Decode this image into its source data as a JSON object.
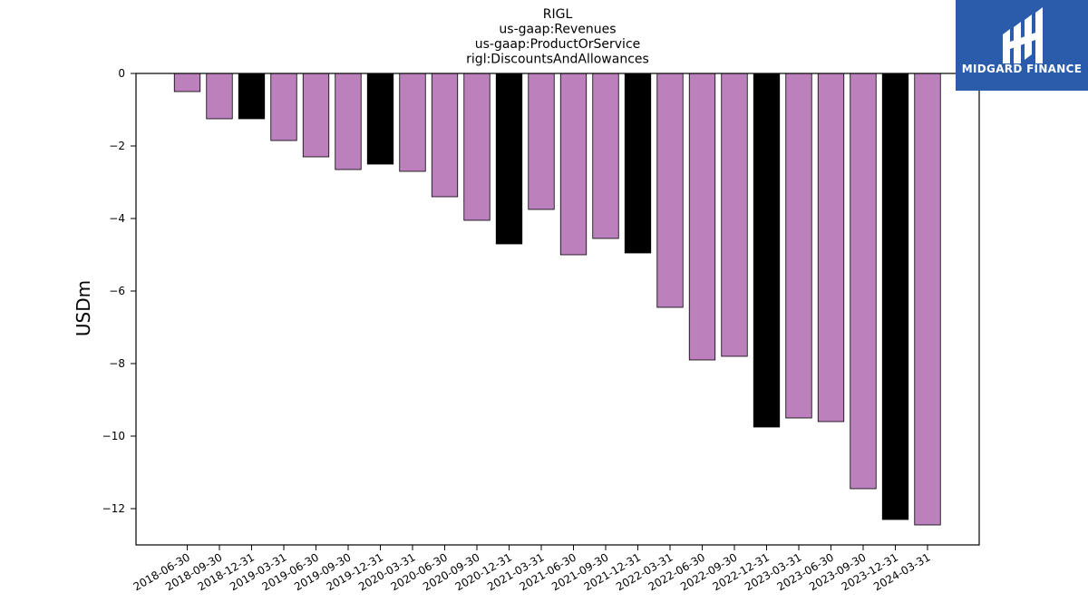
{
  "chart_data": {
    "type": "bar",
    "title": [
      "RIGL",
      "us-gaap:Revenues",
      "us-gaap:ProductOrService",
      "rigl:DiscountsAndAllowances"
    ],
    "xlabel": "",
    "ylabel": "USDm",
    "ylim": [
      -13,
      0
    ],
    "yticks": [
      0,
      -2,
      -4,
      -6,
      -8,
      -10,
      -12
    ],
    "ytick_labels": [
      "0",
      "−2",
      "−4",
      "−6",
      "−8",
      "−10",
      "−12"
    ],
    "grid": false,
    "categories": [
      "2018-06-30",
      "2018-09-30",
      "2018-12-31",
      "2019-03-31",
      "2019-06-30",
      "2019-09-30",
      "2019-12-31",
      "2020-03-31",
      "2020-06-30",
      "2020-09-30",
      "2020-12-31",
      "2021-03-31",
      "2021-06-30",
      "2021-09-30",
      "2021-12-31",
      "2022-03-31",
      "2022-06-30",
      "2022-09-30",
      "2022-12-31",
      "2023-03-31",
      "2023-06-30",
      "2023-09-30",
      "2023-12-31",
      "2024-03-31"
    ],
    "values": [
      -0.5,
      -1.25,
      -1.25,
      -1.85,
      -2.3,
      -2.65,
      -2.5,
      -2.7,
      -3.4,
      -4.05,
      -4.7,
      -3.75,
      -5.0,
      -4.55,
      -4.95,
      -6.45,
      -7.9,
      -7.8,
      -9.75,
      -9.5,
      -9.6,
      -11.45,
      -12.3,
      -12.45
    ],
    "bar_colors": [
      "#bc80bd",
      "#bc80bd",
      "#000000",
      "#bc80bd",
      "#bc80bd",
      "#bc80bd",
      "#000000",
      "#bc80bd",
      "#bc80bd",
      "#bc80bd",
      "#000000",
      "#bc80bd",
      "#bc80bd",
      "#bc80bd",
      "#000000",
      "#bc80bd",
      "#bc80bd",
      "#bc80bd",
      "#000000",
      "#bc80bd",
      "#bc80bd",
      "#bc80bd",
      "#000000",
      "#bc80bd"
    ]
  },
  "logo": {
    "text": "MIDGARD FINANCE",
    "background": "#2b5cab"
  }
}
